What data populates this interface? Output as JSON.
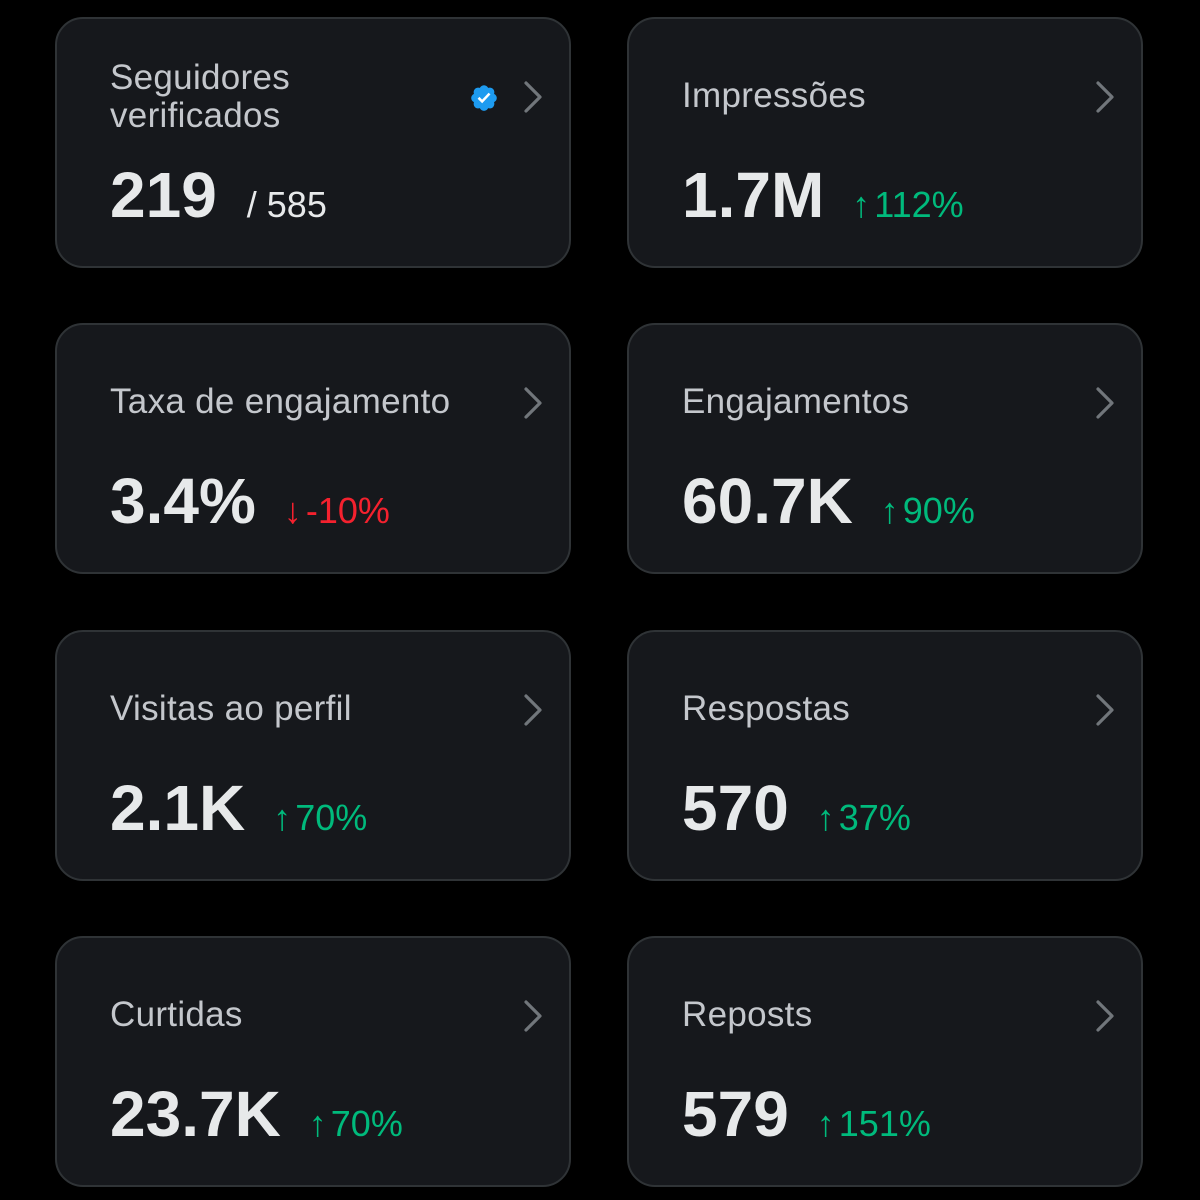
{
  "colors": {
    "background": "#000000",
    "card": "#16181c",
    "card_border": "#2f3336",
    "title": "#c4c7cc",
    "value": "#e7e9ea",
    "positive": "#00ba7c",
    "negative": "#f4212e",
    "verified": "#1d9bf0"
  },
  "cards": {
    "verified_followers": {
      "title": "Seguidores verificados",
      "value": "219",
      "total": "/ 585",
      "icon": "verified-badge-icon"
    },
    "impressions": {
      "title": "Impressões",
      "value": "1.7M",
      "arrow": "↑",
      "change": "112%",
      "trend": "up"
    },
    "engagement_rate": {
      "title": "Taxa de engajamento",
      "value": "3.4%",
      "arrow": "↓",
      "change": "-10%",
      "trend": "down"
    },
    "engagements": {
      "title": "Engajamentos",
      "value": "60.7K",
      "arrow": "↑",
      "change": "90%",
      "trend": "up"
    },
    "profile_visits": {
      "title": "Visitas ao perfil",
      "value": "2.1K",
      "arrow": "↑",
      "change": "70%",
      "trend": "up"
    },
    "replies": {
      "title": "Respostas",
      "value": "570",
      "arrow": "↑",
      "change": "37%",
      "trend": "up"
    },
    "likes": {
      "title": "Curtidas",
      "value": "23.7K",
      "arrow": "↑",
      "change": "70%",
      "trend": "up"
    },
    "reposts": {
      "title": "Reposts",
      "value": "579",
      "arrow": "↑",
      "change": "151%",
      "trend": "up"
    }
  }
}
